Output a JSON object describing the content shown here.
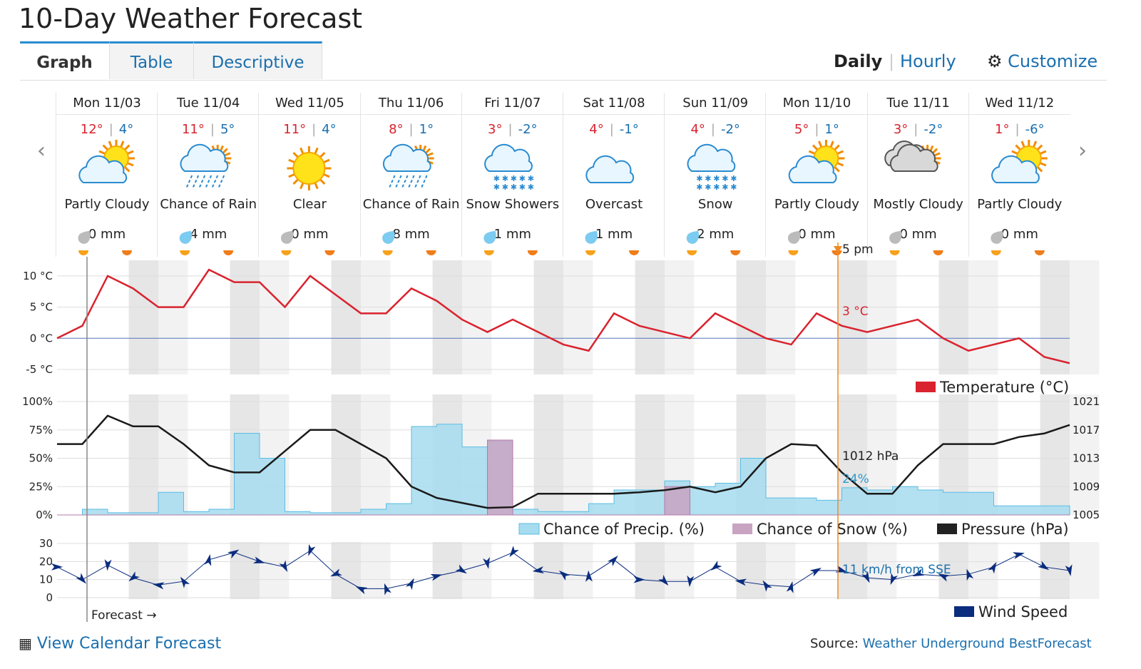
{
  "header": {
    "title": "10-Day Weather Forecast",
    "tabs": [
      "Graph",
      "Table",
      "Descriptive"
    ],
    "views": [
      "Daily",
      "Hourly"
    ],
    "customize": "Customize"
  },
  "days": [
    {
      "day": "Mon 11/03",
      "high": "12°",
      "low": "4°",
      "condition": "Partly Cloudy",
      "precip": "0 mm"
    },
    {
      "day": "Tue 11/04",
      "high": "11°",
      "low": "5°",
      "condition": "Chance of Rain",
      "precip": "4 mm"
    },
    {
      "day": "Wed 11/05",
      "high": "11°",
      "low": "4°",
      "condition": "Clear",
      "precip": "0 mm"
    },
    {
      "day": "Thu 11/06",
      "high": "8°",
      "low": "1°",
      "condition": "Chance of Rain",
      "precip": "8 mm"
    },
    {
      "day": "Fri 11/07",
      "high": "3°",
      "low": "-2°",
      "condition": "Snow Showers",
      "precip": "1 mm"
    },
    {
      "day": "Sat 11/08",
      "high": "4°",
      "low": "-1°",
      "condition": "Overcast",
      "precip": "1 mm"
    },
    {
      "day": "Sun 11/09",
      "high": "4°",
      "low": "-2°",
      "condition": "Snow",
      "precip": "2 mm"
    },
    {
      "day": "Mon 11/10",
      "high": "5°",
      "low": "1°",
      "condition": "Partly Cloudy",
      "precip": "0 mm"
    },
    {
      "day": "Tue 11/11",
      "high": "3°",
      "low": "-2°",
      "condition": "Mostly Cloudy",
      "precip": "0 mm"
    },
    {
      "day": "Wed 11/12",
      "high": "1°",
      "low": "-6°",
      "condition": "Partly Cloudy",
      "precip": "0 mm"
    }
  ],
  "chart_data": [
    {
      "type": "line",
      "ylim": [
        -5.8,
        12.5
      ],
      "yticks": [
        {
          "value": 10,
          "label": "10 °C"
        },
        {
          "value": 5,
          "label": "5 °C"
        },
        {
          "value": 0,
          "label": "0 °C"
        },
        {
          "value": -5,
          "label": "-5 °C"
        }
      ],
      "series": [
        {
          "name": "Temperature (°C)",
          "color": "#d9232e",
          "values": [
            0,
            2,
            10,
            8,
            5,
            5,
            11,
            9,
            9,
            5,
            10,
            7,
            4,
            4,
            8,
            6,
            3,
            1,
            3,
            1,
            -1,
            -2,
            4,
            2,
            1,
            0,
            4,
            2,
            0,
            -1,
            4,
            2,
            1,
            2,
            3,
            0,
            -2,
            -1,
            0,
            -3,
            -4
          ]
        }
      ],
      "annotations": [
        "5 pm",
        "3 °C"
      ]
    },
    {
      "type": "area",
      "ylim": [
        0,
        100
      ],
      "yticks": [
        {
          "value": 100,
          "label": "100%"
        },
        {
          "value": 75,
          "label": "75%"
        },
        {
          "value": 50,
          "label": "50%"
        },
        {
          "value": 25,
          "label": "25%"
        },
        {
          "value": 0,
          "label": "0%"
        }
      ],
      "y2lim": [
        1005,
        1021
      ],
      "y2ticks": [
        1021,
        1017,
        1013,
        1009,
        1005
      ],
      "series": [
        {
          "name": "Chance of Precip. (%)",
          "color": "#a6dcef",
          "values": [
            0,
            5,
            2,
            2,
            20,
            3,
            5,
            72,
            50,
            3,
            2,
            2,
            5,
            10,
            78,
            80,
            60,
            65,
            5,
            3,
            3,
            10,
            22,
            22,
            30,
            25,
            28,
            50,
            15,
            15,
            13,
            24,
            22,
            25,
            22,
            20,
            20,
            8,
            8,
            8,
            6
          ]
        },
        {
          "name": "Chance of Snow (%)",
          "color": "#c9a3c2",
          "values": [
            0,
            0,
            0,
            0,
            0,
            0,
            0,
            0,
            0,
            0,
            0,
            0,
            0,
            0,
            0,
            0,
            0,
            66,
            0,
            0,
            0,
            0,
            0,
            0,
            25,
            0,
            0,
            0,
            0,
            0,
            0,
            0,
            0,
            0,
            0,
            0,
            0,
            0,
            0,
            0,
            0
          ]
        },
        {
          "name": "Pressure (hPa)",
          "color": "#1a1a1a",
          "axis": "y2",
          "values": [
            1015,
            1015,
            1019,
            1017.5,
            1017.5,
            1015,
            1012,
            1011,
            1011,
            1014,
            1017,
            1017,
            1015,
            1013,
            1009,
            1007.4,
            1006.7,
            1006,
            1006.1,
            1008,
            1008,
            1008,
            1008,
            1008.2,
            1008.5,
            1009,
            1008.2,
            1009,
            1013,
            1015,
            1014.8,
            1011,
            1008,
            1008,
            1012,
            1015,
            1015,
            1015,
            1016,
            1016.5,
            1017.7
          ]
        }
      ],
      "annotations": [
        "1012 hPa",
        "24%"
      ]
    },
    {
      "type": "line",
      "ylim": [
        0,
        30
      ],
      "yticks": [
        0,
        10,
        20,
        30
      ],
      "series": [
        {
          "name": "Wind Speed",
          "color": "#0b2d7e",
          "values": [
            17,
            10,
            18,
            11,
            7,
            9,
            21,
            25,
            20,
            17,
            26,
            13,
            5,
            5,
            8,
            12,
            15,
            19,
            25,
            15,
            13,
            12,
            21,
            10,
            9,
            9,
            17,
            9,
            7,
            6,
            15,
            15,
            11,
            10,
            13,
            12,
            13,
            17,
            24,
            17,
            15
          ]
        }
      ],
      "annotations": [
        "11 km/h from SSE",
        "Forecast →"
      ]
    }
  ],
  "footer": {
    "link": "View Calendar Forecast",
    "source_label": "Source:",
    "source": "Weather Underground BestForecast"
  }
}
